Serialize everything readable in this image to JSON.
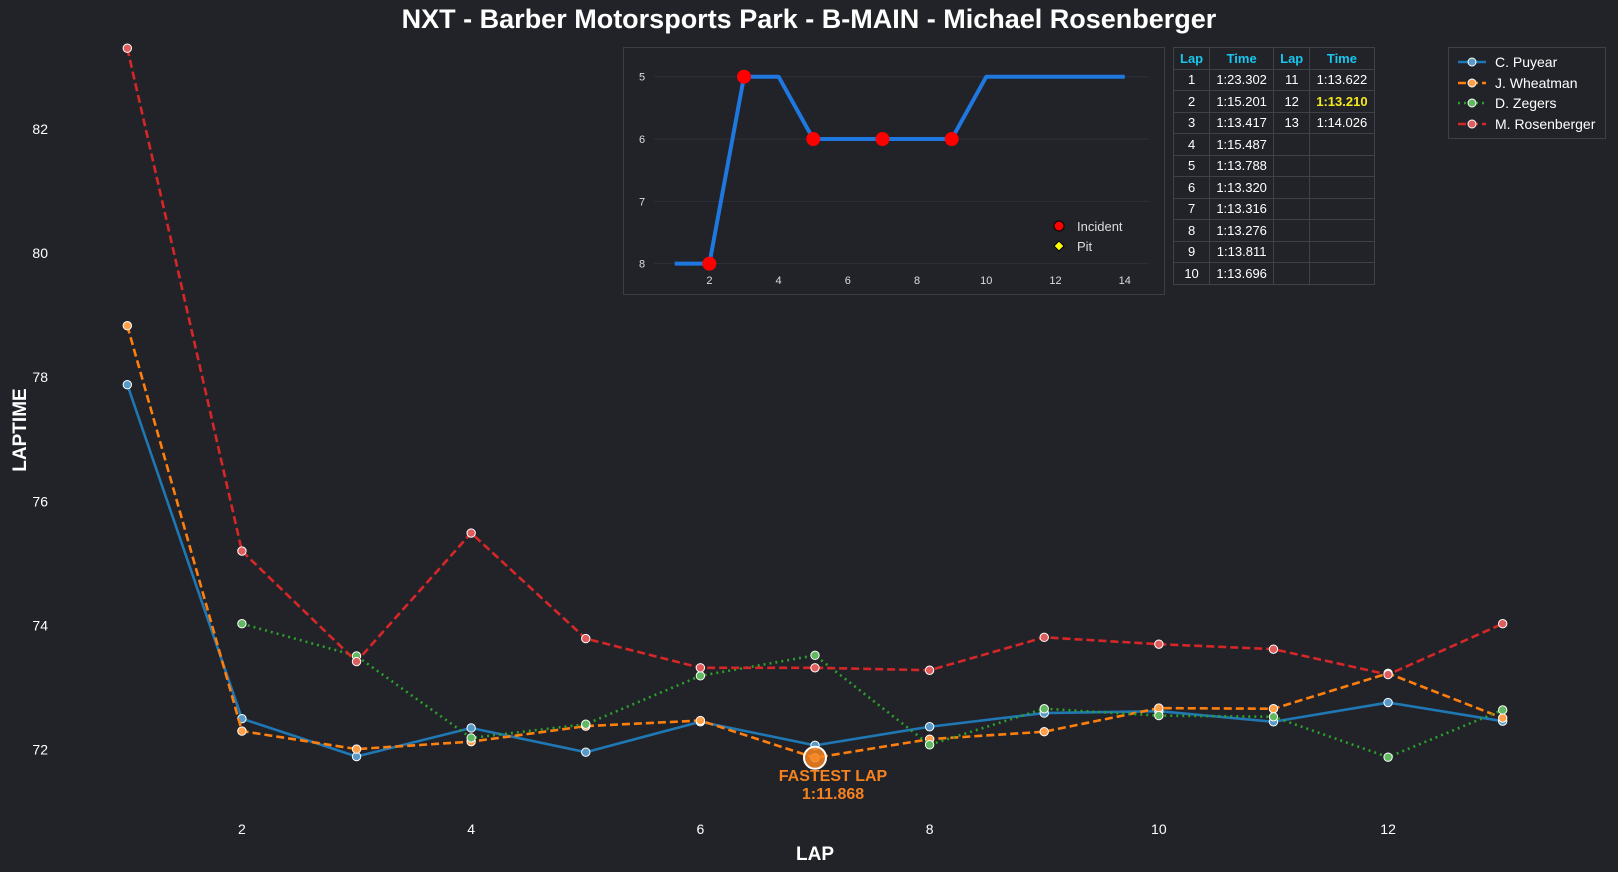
{
  "title": "NXT - Barber Motorsports Park - B-MAIN - Michael Rosenberger",
  "chart_data": [
    {
      "type": "line",
      "title": "NXT - Barber Motorsports Park - B-MAIN - Michael Rosenberger",
      "xlabel": "LAP",
      "ylabel": "LAPTIME",
      "x": [
        1,
        2,
        3,
        4,
        5,
        6,
        7,
        8,
        9,
        10,
        11,
        12,
        13
      ],
      "xticks": [
        2,
        4,
        6,
        8,
        10,
        12
      ],
      "yticks": [
        72,
        74,
        76,
        78,
        80,
        82
      ],
      "xlim": [
        0.5,
        13.5
      ],
      "ylim": [
        70.9,
        83.4
      ],
      "grid": false,
      "legend_position": "top-right",
      "series": [
        {
          "name": "C. Puyear",
          "color": "#1f77b4",
          "style": "solid",
          "values": [
            77.88,
            72.5,
            71.89,
            72.35,
            71.96,
            72.45,
            72.07,
            72.37,
            72.59,
            72.62,
            72.45,
            72.76,
            72.46
          ]
        },
        {
          "name": "J. Wheatman",
          "color": "#ff7f0e",
          "style": "dashed",
          "values": [
            78.83,
            72.3,
            72.01,
            72.13,
            72.38,
            72.47,
            71.87,
            72.17,
            72.29,
            72.67,
            72.66,
            73.23,
            72.51
          ]
        },
        {
          "name": "D. Zegers",
          "color": "#2ca02c",
          "style": "dotted",
          "values": [
            null,
            74.03,
            73.51,
            72.19,
            72.41,
            73.19,
            73.52,
            72.08,
            72.66,
            72.55,
            72.53,
            71.88,
            72.64
          ]
        },
        {
          "name": "M. Rosenberger",
          "color": "#d62728",
          "style": "dashed",
          "values": [
            83.3,
            75.2,
            73.42,
            75.49,
            73.79,
            73.32,
            73.32,
            73.28,
            73.81,
            73.7,
            73.62,
            73.21,
            74.03
          ]
        }
      ],
      "annotation": {
        "label": "FASTEST LAP",
        "time": "1:11.868",
        "x": 7,
        "y": 71.87,
        "color": "#f6821f"
      }
    },
    {
      "type": "line",
      "x": [
        1,
        2,
        3,
        4,
        5,
        6,
        7,
        8,
        9,
        10,
        11,
        12,
        13,
        14
      ],
      "values": [
        8,
        8,
        5,
        5,
        6,
        6,
        6,
        6,
        6,
        5,
        5,
        5,
        5,
        5
      ],
      "xticks": [
        2,
        4,
        6,
        8,
        10,
        12,
        14
      ],
      "yticks": [
        5,
        6,
        7,
        8
      ],
      "xlim": [
        0.4,
        14.7
      ],
      "ylim": [
        8.15,
        4.7
      ],
      "color": "#1f77e0",
      "incident_laps": [
        2,
        3,
        5,
        7,
        9
      ],
      "pit_laps": [],
      "legend": [
        {
          "label": "Incident",
          "color": "#ff0000",
          "marker": "circle"
        },
        {
          "label": "Pit",
          "color": "#ffff00",
          "marker": "diamond"
        }
      ],
      "legend_position": "lower-right"
    },
    {
      "type": "table",
      "headers": [
        "Lap",
        "Time",
        "Lap",
        "Time"
      ],
      "rows": [
        [
          "1",
          "1:23.302",
          "11",
          "1:13.622"
        ],
        [
          "2",
          "1:15.201",
          "12",
          "1:13.210"
        ],
        [
          "3",
          "1:13.417",
          "13",
          "1:14.026"
        ],
        [
          "4",
          "1:15.487",
          "",
          ""
        ],
        [
          "5",
          "1:13.788",
          "",
          ""
        ],
        [
          "6",
          "1:13.320",
          "",
          ""
        ],
        [
          "7",
          "1:13.316",
          "",
          ""
        ],
        [
          "8",
          "1:13.276",
          "",
          ""
        ],
        [
          "9",
          "1:13.811",
          "",
          ""
        ],
        [
          "10",
          "1:13.696",
          "",
          ""
        ]
      ],
      "best_time": "1:13.210",
      "header_color": "#19c6ee",
      "best_color": "#f5ea1b"
    }
  ],
  "colors": {
    "background": "#212328",
    "text": "#ffffff"
  }
}
